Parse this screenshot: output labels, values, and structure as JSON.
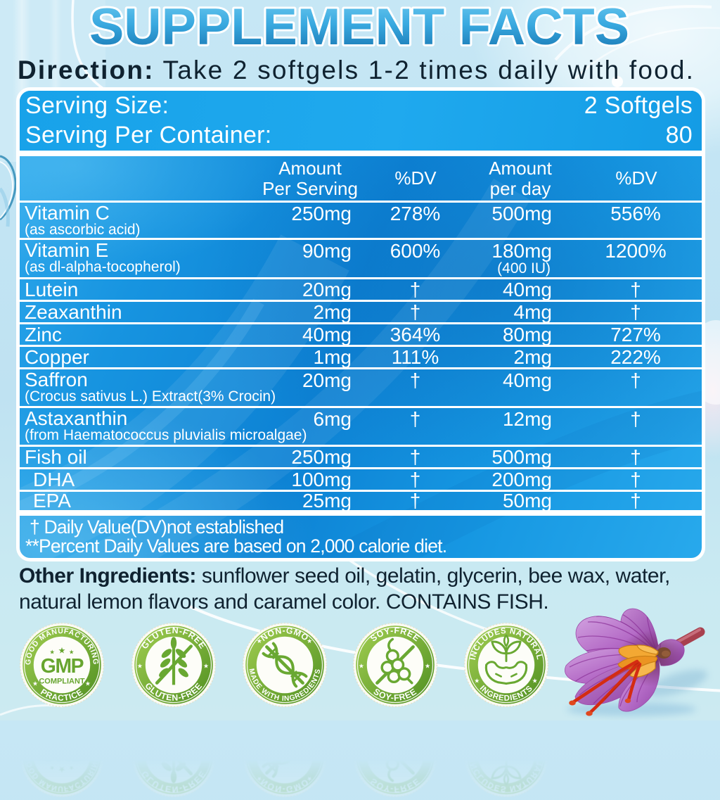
{
  "title": "SUPPLEMENT FACTS",
  "direction": {
    "label": "Direction:",
    "text": " Take 2 softgels 1-2 times daily with food."
  },
  "serving": {
    "size_label": "Serving Size:",
    "size_value": "2 Softgels",
    "per_container_label": "Serving Per Container:",
    "per_container_value": "80"
  },
  "table": {
    "headers": {
      "amount_per_serving_line1": "Amount",
      "amount_per_serving_line2": "Per Serving",
      "dv1": "%DV",
      "amount_per_day_line1": "Amount",
      "amount_per_day_line2": "per day",
      "dv2": "%DV"
    },
    "rows": [
      {
        "name": "Vitamin C",
        "sub": "(as ascorbic acid)",
        "amt1": "250mg",
        "dv1": "278%",
        "amt2": "500mg",
        "dv2": "556%"
      },
      {
        "name": "Vitamin E",
        "sub": "(as dl-alpha-tocopherol)",
        "amt1": "90mg",
        "dv1": "600%",
        "amt2": "180mg",
        "amt2_sub": "(400 IU)",
        "dv2": "1200%"
      },
      {
        "name": "Lutein",
        "amt1": "20mg",
        "dv1": "†",
        "amt2": "40mg",
        "dv2": "†"
      },
      {
        "name": "Zeaxanthin",
        "amt1": "2mg",
        "dv1": "†",
        "amt2": "4mg",
        "dv2": "†"
      },
      {
        "name": "Zinc",
        "amt1": "40mg",
        "dv1": "364%",
        "amt2": "80mg",
        "dv2": "727%"
      },
      {
        "name": "Copper",
        "amt1": "1mg",
        "dv1": "111%",
        "amt2": "2mg",
        "dv2": "222%"
      },
      {
        "name": "Saffron",
        "sub": "(Crocus sativus L.) Extract(3% Crocin)",
        "amt1": "20mg",
        "dv1": "†",
        "amt2": "40mg",
        "dv2": "†"
      },
      {
        "name": "Astaxanthin",
        "sub": "(from Haematococcus pluvialis microalgae)",
        "amt1": "6mg",
        "dv1": "†",
        "amt2": "12mg",
        "dv2": "†"
      },
      {
        "name": "Fish oil",
        "amt1": "250mg",
        "dv1": "†",
        "amt2": "500mg",
        "dv2": "†"
      },
      {
        "name": "DHA",
        "indent": true,
        "amt1": "100mg",
        "dv1": "†",
        "amt2": "200mg",
        "dv2": "†"
      },
      {
        "name": "EPA",
        "indent": true,
        "amt1": "25mg",
        "dv1": "†",
        "amt2": "50mg",
        "dv2": "†"
      }
    ],
    "footnotes": [
      "† Daily Value(DV)not established",
      "**Percent Daily Values are based on 2,000 calorie diet."
    ]
  },
  "other_ingredients": {
    "label": "Other Ingredients:",
    "text": " sunflower seed oil, gelatin, glycerin, bee wax, water, natural lemon flavors and caramel color. CONTAINS FISH."
  },
  "badges": [
    {
      "top": "GOOD MANUFACTURING",
      "bottom": "PRACTICE",
      "center_main": "GMP",
      "center_sub": "COMPLIANT"
    },
    {
      "top": "GLUTEN-FREE",
      "bottom": "GLUTEN-FREE"
    },
    {
      "top": "NON-GMO",
      "bottom": "MADE WITH INGREDIENTS"
    },
    {
      "top": "SOY-FREE",
      "bottom": "SOY-FREE"
    },
    {
      "top": "INCLUDES NATURAL",
      "bottom": "INGREDIENTS"
    }
  ],
  "colors": {
    "panel_blue": "#0d82d4",
    "serving_blue": "#18a2e9",
    "title_top": "#6cc9ef",
    "title_bottom": "#1572ae",
    "badge_green": "#5e9e2b",
    "text_dark": "#0f2230"
  }
}
